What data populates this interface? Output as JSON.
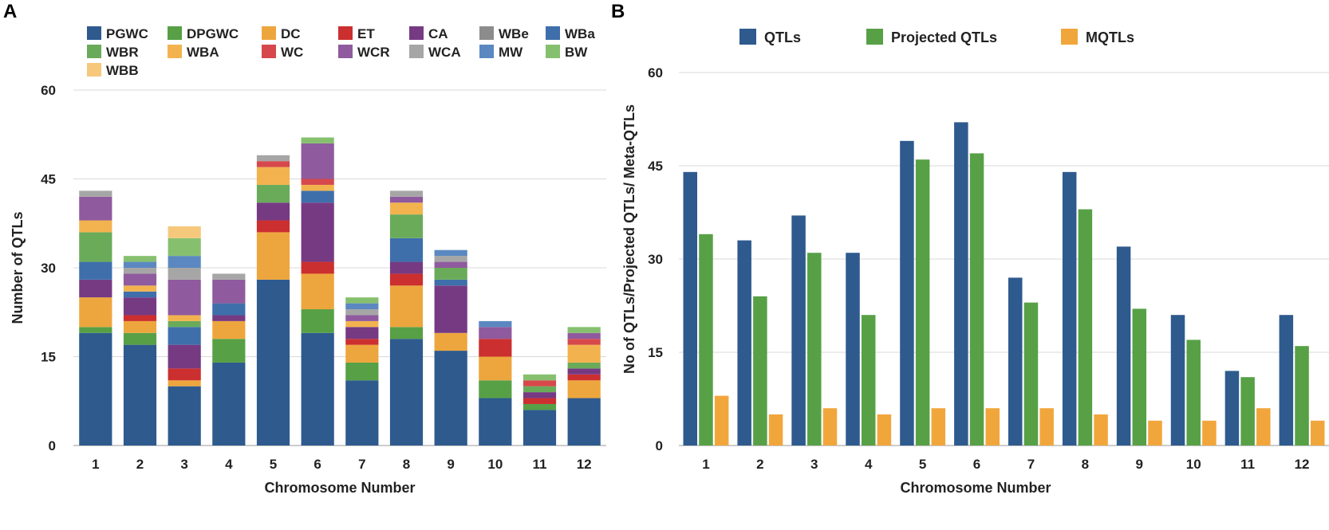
{
  "figure": {
    "label_a": "A",
    "label_b": "B"
  },
  "chart_data": [
    {
      "panel": "A",
      "type": "bar",
      "stacked": true,
      "title": "",
      "xlabel": "Chromosome Number",
      "ylabel": "Number of QTLs",
      "ylim": [
        0,
        60
      ],
      "yticks": [
        0,
        15,
        30,
        45,
        60
      ],
      "categories": [
        "1",
        "2",
        "3",
        "4",
        "5",
        "6",
        "7",
        "8",
        "9",
        "10",
        "11",
        "12"
      ],
      "legend_position": "top",
      "series": [
        {
          "name": "PGWC",
          "color": "#2e5a8e",
          "values": [
            19,
            17,
            10,
            14,
            28,
            19,
            11,
            18,
            16,
            8,
            6,
            8
          ]
        },
        {
          "name": "DPGWC",
          "color": "#57a046",
          "values": [
            1,
            2,
            0,
            4,
            0,
            4,
            3,
            2,
            0,
            3,
            1,
            0
          ]
        },
        {
          "name": "DC",
          "color": "#eda63d",
          "values": [
            5,
            2,
            1,
            3,
            8,
            6,
            3,
            7,
            3,
            4,
            0,
            3
          ]
        },
        {
          "name": "ET",
          "color": "#cc2f2f",
          "values": [
            0,
            1,
            2,
            0,
            2,
            2,
            1,
            2,
            0,
            3,
            1,
            1
          ]
        },
        {
          "name": "CA",
          "color": "#763a83",
          "values": [
            3,
            3,
            4,
            1,
            3,
            10,
            2,
            2,
            8,
            0,
            1,
            1
          ]
        },
        {
          "name": "WBe",
          "color": "#8c8c8c",
          "values": [
            0,
            0,
            0,
            0,
            0,
            0,
            0,
            0,
            0,
            0,
            0,
            0
          ]
        },
        {
          "name": "WBa",
          "color": "#3e6fab",
          "values": [
            3,
            1,
            3,
            2,
            0,
            2,
            0,
            4,
            1,
            0,
            0,
            0
          ]
        },
        {
          "name": "WBR",
          "color": "#6aab5a",
          "values": [
            5,
            0,
            1,
            0,
            3,
            0,
            0,
            4,
            2,
            0,
            1,
            1
          ]
        },
        {
          "name": "WBA",
          "color": "#f2b34f",
          "values": [
            2,
            1,
            1,
            0,
            3,
            1,
            1,
            2,
            0,
            0,
            0,
            3
          ]
        },
        {
          "name": "WC",
          "color": "#d6484b",
          "values": [
            0,
            0,
            0,
            0,
            1,
            1,
            0,
            0,
            0,
            0,
            1,
            1
          ]
        },
        {
          "name": "WCR",
          "color": "#8f5a9e",
          "values": [
            4,
            2,
            6,
            4,
            0,
            6,
            1,
            1,
            1,
            2,
            0,
            1
          ]
        },
        {
          "name": "WCA",
          "color": "#a6a6a6",
          "values": [
            1,
            1,
            2,
            1,
            1,
            0,
            1,
            1,
            1,
            0,
            0,
            0
          ]
        },
        {
          "name": "MW",
          "color": "#5b88c0",
          "values": [
            0,
            1,
            2,
            0,
            0,
            0,
            1,
            0,
            1,
            1,
            0,
            0
          ]
        },
        {
          "name": "BW",
          "color": "#86c06f",
          "values": [
            0,
            1,
            3,
            0,
            0,
            1,
            1,
            0,
            0,
            0,
            1,
            1
          ]
        },
        {
          "name": "WBB",
          "color": "#f6c87c",
          "values": [
            0,
            0,
            2,
            0,
            0,
            0,
            0,
            0,
            0,
            0,
            0,
            0
          ]
        }
      ]
    },
    {
      "panel": "B",
      "type": "bar",
      "stacked": false,
      "title": "",
      "xlabel": "Chromosome Number",
      "ylabel": "No of QTLs/Projected QTLs/ Meta-QTLs",
      "ylim": [
        0,
        60
      ],
      "yticks": [
        0,
        15,
        30,
        45,
        60
      ],
      "grid": true,
      "categories": [
        "1",
        "2",
        "3",
        "4",
        "5",
        "6",
        "7",
        "8",
        "9",
        "10",
        "11",
        "12"
      ],
      "legend_position": "top",
      "series": [
        {
          "name": "QTLs",
          "color": "#2e5a8e",
          "values": [
            44,
            33,
            37,
            31,
            49,
            52,
            27,
            44,
            32,
            21,
            12,
            21
          ]
        },
        {
          "name": "Projected QTLs",
          "color": "#57a046",
          "values": [
            34,
            24,
            31,
            21,
            46,
            47,
            23,
            38,
            22,
            17,
            11,
            16
          ]
        },
        {
          "name": "MQTLs",
          "color": "#f1a63c",
          "values": [
            8,
            5,
            6,
            5,
            6,
            6,
            6,
            5,
            4,
            4,
            6,
            4
          ]
        }
      ]
    }
  ]
}
